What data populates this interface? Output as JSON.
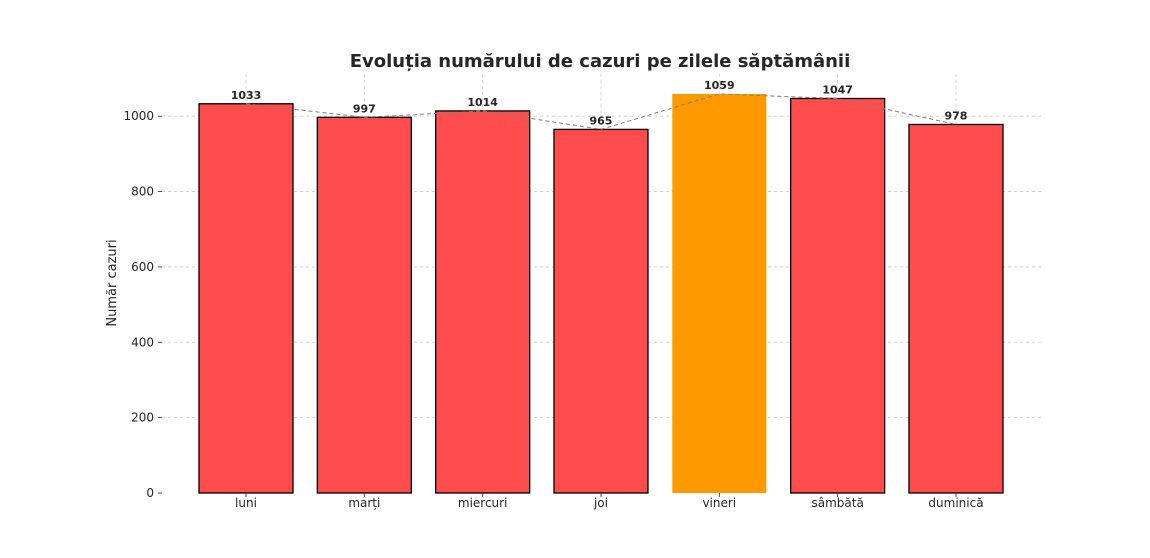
{
  "chart_data": {
    "type": "bar",
    "title": "Evoluția numărului de cazuri pe zilele săptămânii",
    "xlabel": "",
    "ylabel": "Număr cazuri",
    "categories": [
      "luni",
      "marți",
      "miercuri",
      "joi",
      "vineri",
      "sâmbătă",
      "duminică"
    ],
    "values": [
      1033,
      997,
      1014,
      965,
      1059,
      1047,
      978
    ],
    "ylim": [
      0,
      1112
    ],
    "yticks": [
      0,
      200,
      400,
      600,
      800,
      1000
    ],
    "grid": true,
    "trend_line": true,
    "highlight_index": 4,
    "colors": {
      "bar": "#ff4c4c",
      "highlight": "#ff9900",
      "bar_edge": "#000000",
      "trend": "#808080"
    }
  }
}
